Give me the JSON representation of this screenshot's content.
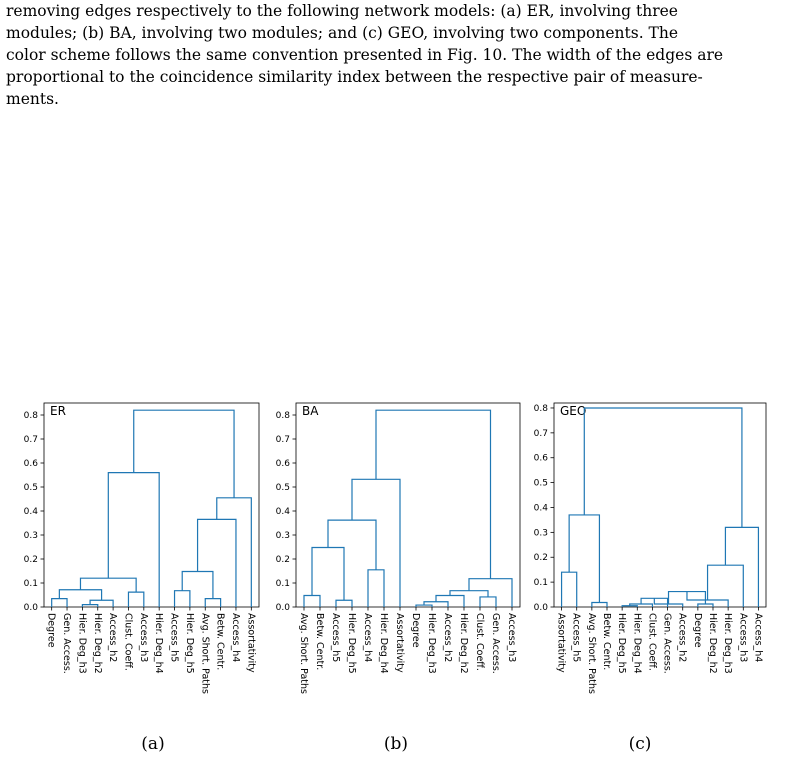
{
  "caption": {
    "lines": [
      "removing edges respectively to the following network models: (a) ER, involving three",
      "modules; (b) BA, involving two modules; and (c) GEO, involving two components. The",
      "color scheme follows the same convention presented in Fig. 10. The width of the edges are",
      "proportional to the coincidence similarity index between the respective pair of measure-",
      "ments."
    ]
  },
  "line_color": "#1f77b4",
  "chart_data": [
    {
      "type": "dendrogram",
      "title": "ER",
      "panel_label": "(a)",
      "ylim": [
        0,
        0.85
      ],
      "yticks": [
        0.0,
        0.1,
        0.2,
        0.3,
        0.4,
        0.5,
        0.6,
        0.7,
        0.8
      ],
      "leaves": [
        "Degree",
        "Gen. Access.",
        "Hier. Deg_h3",
        "Hier. Deg_h2",
        "Access_h2",
        "Clust. Coeff.",
        "Access_h3",
        "Hier. Deg_h4",
        "Access_h5",
        "Hier. Deg_h5",
        "Avg. Short. Paths",
        "Betw. Centr.",
        "Access_h4",
        "Assortativity"
      ],
      "merges": [
        {
          "a": 0,
          "b": 1,
          "h": 0.035
        },
        {
          "a": 2,
          "b": 3,
          "h": 0.01
        },
        {
          "a": 15,
          "b": 4,
          "h": 0.028
        },
        {
          "a": 14,
          "b": 16,
          "h": 0.072
        },
        {
          "a": 5,
          "b": 6,
          "h": 0.062
        },
        {
          "a": 17,
          "b": 18,
          "h": 0.12
        },
        {
          "a": 19,
          "b": 7,
          "h": 0.56
        },
        {
          "a": 8,
          "b": 9,
          "h": 0.068
        },
        {
          "a": 10,
          "b": 11,
          "h": 0.035
        },
        {
          "a": 21,
          "b": 22,
          "h": 0.148
        },
        {
          "a": 23,
          "b": 12,
          "h": 0.365
        },
        {
          "a": 24,
          "b": 13,
          "h": 0.455
        },
        {
          "a": 20,
          "b": 25,
          "h": 0.82
        }
      ]
    },
    {
      "type": "dendrogram",
      "title": "BA",
      "panel_label": "(b)",
      "ylim": [
        0,
        0.85
      ],
      "yticks": [
        0.0,
        0.1,
        0.2,
        0.3,
        0.4,
        0.5,
        0.6,
        0.7,
        0.8
      ],
      "leaves": [
        "Avg. Short. Paths",
        "Betw. Centr.",
        "Access_h5",
        "Hier. Deg_h5",
        "Access_h4",
        "Hier. Deg_h4",
        "Assortativity",
        "Degree",
        "Hier. Deg_h3",
        "Access_h2",
        "Hier. Deg_h2",
        "Clust. Coeff.",
        "Gen. Access.",
        "Access_h3"
      ],
      "merges": [
        {
          "a": 0,
          "b": 1,
          "h": 0.048
        },
        {
          "a": 2,
          "b": 3,
          "h": 0.028
        },
        {
          "a": 14,
          "b": 15,
          "h": 0.248
        },
        {
          "a": 4,
          "b": 5,
          "h": 0.155
        },
        {
          "a": 16,
          "b": 17,
          "h": 0.362
        },
        {
          "a": 18,
          "b": 6,
          "h": 0.532
        },
        {
          "a": 7,
          "b": 8,
          "h": 0.008
        },
        {
          "a": 20,
          "b": 9,
          "h": 0.022
        },
        {
          "a": 21,
          "b": 10,
          "h": 0.048
        },
        {
          "a": 11,
          "b": 12,
          "h": 0.042
        },
        {
          "a": 22,
          "b": 23,
          "h": 0.068
        },
        {
          "a": 24,
          "b": 13,
          "h": 0.118
        },
        {
          "a": 19,
          "b": 25,
          "h": 0.82
        }
      ]
    },
    {
      "type": "dendrogram",
      "title": "GEO",
      "panel_label": "(c)",
      "ylim": [
        0,
        0.82
      ],
      "yticks": [
        0.0,
        0.1,
        0.2,
        0.3,
        0.4,
        0.5,
        0.6,
        0.7,
        0.8
      ],
      "leaves": [
        "Assortativity",
        "Access_h5",
        "Avg. Short. Paths",
        "Betw. Centr.",
        "Hier. Deg_h5",
        "Hier. Deg_h4",
        "Clust. Coeff.",
        "Gen. Access.",
        "Access_h2",
        "Degree",
        "Hier. Deg_h2",
        "Hier. Deg_h3",
        "Access_h3",
        "Access_h4"
      ],
      "merges": [
        {
          "a": 0,
          "b": 1,
          "h": 0.14
        },
        {
          "a": 2,
          "b": 3,
          "h": 0.018
        },
        {
          "a": 14,
          "b": 15,
          "h": 0.37
        },
        {
          "a": 4,
          "b": 5,
          "h": 0.005
        },
        {
          "a": 17,
          "b": 6,
          "h": 0.012
        },
        {
          "a": 18,
          "b": 7,
          "h": 0.035
        },
        {
          "a": 19,
          "b": 8,
          "h": 0.012
        },
        {
          "a": 9,
          "b": 10,
          "h": 0.012
        },
        {
          "a": 20,
          "b": 21,
          "h": 0.062
        },
        {
          "a": 11,
          "b": 22,
          "h": 0.028
        },
        {
          "a": 23,
          "b": 12,
          "h": 0.168
        },
        {
          "a": 24,
          "b": 13,
          "h": 0.32
        },
        {
          "a": 16,
          "b": 25,
          "h": 0.8
        }
      ]
    }
  ]
}
